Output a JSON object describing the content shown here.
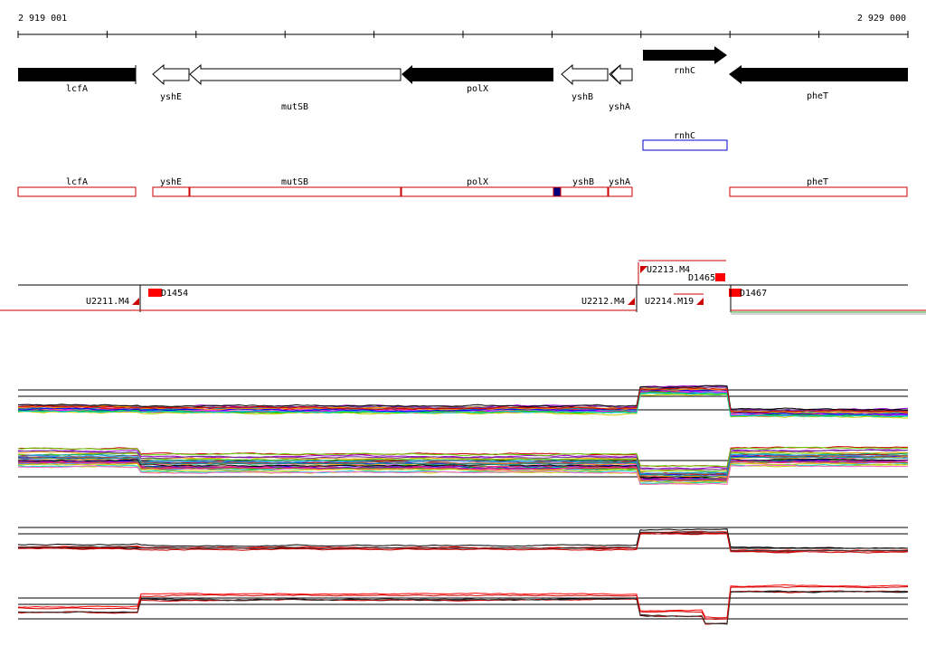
{
  "ruler": {
    "start_label": "2 919 001",
    "end_label": "2 929 000"
  },
  "genes_forward": [
    {
      "name": "rnhC"
    }
  ],
  "genes_reverse": [
    {
      "name": "lcfA"
    },
    {
      "name": "yshE"
    },
    {
      "name": "mutSB"
    },
    {
      "name": "polX"
    },
    {
      "name": "yshB"
    },
    {
      "name": "yshA"
    },
    {
      "name": "pheT"
    }
  ],
  "annotations_forward": [
    {
      "name": "rnhC"
    }
  ],
  "annotations_reverse": [
    {
      "name": "lcfA"
    },
    {
      "name": "yshE"
    },
    {
      "name": "mutSB"
    },
    {
      "name": "polX"
    },
    {
      "name": "yshB"
    },
    {
      "name": "yshA"
    },
    {
      "name": "pheT"
    }
  ],
  "transcripts": {
    "upper_labels": [
      {
        "name": "U2213.M4"
      },
      {
        "name": "D1465"
      }
    ],
    "lower_labels": [
      {
        "name": "U2211.M4"
      },
      {
        "name": "D1454"
      },
      {
        "name": "U2212.M4"
      },
      {
        "name": "U2214.M19"
      },
      {
        "name": "D1467"
      }
    ]
  },
  "colors": {
    "gene_fill": "#000000",
    "annotation_reverse": "#cc0000",
    "annotation_forward": "#0000cc",
    "marker": "#ff0000",
    "highlight": "#000080"
  }
}
